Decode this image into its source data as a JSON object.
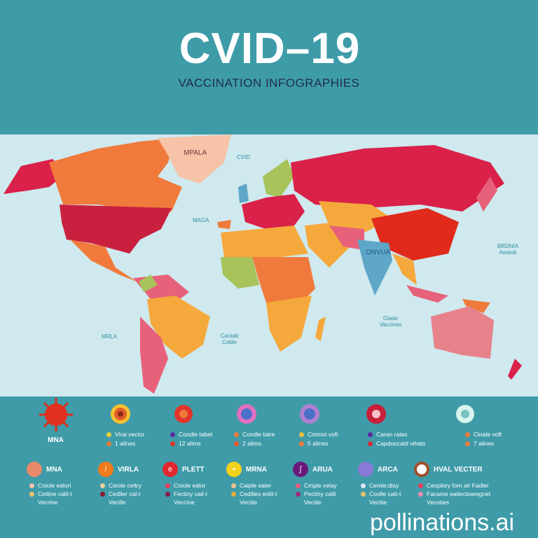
{
  "header": {
    "title": "CVID–19",
    "subtitle": "VACCINATION INFOGRAPHIES"
  },
  "map": {
    "labels": [
      "MPALA",
      "CVID",
      "MAGA",
      "MRLA",
      "Cantab Coble",
      "ONVUA",
      "BRDNIA Aeetok",
      "Glade Vaccines"
    ],
    "colors": {
      "ocean": "#cfe9ef",
      "red": "#d9214a",
      "orange": "#f07a3c",
      "yellow": "#f5a93c",
      "pink": "#e8617a",
      "green": "#a7c35a",
      "blue": "#5ea7c8",
      "peach": "#f7c3a8"
    }
  },
  "legend_row": {
    "first_label": "MNA",
    "items": [
      {
        "color": "#f0a020",
        "lines": [
          "Viral vector",
          "1 alines"
        ],
        "dots": [
          "#e8d23a",
          "#e87a2e"
        ]
      },
      {
        "color": "#e0352a",
        "lines": [
          "Condle tabet",
          "12 alims"
        ],
        "dots": [
          "#5a2aa0",
          "#e0352a"
        ]
      },
      {
        "color": "#d86fc0",
        "lines": [
          "Condle tatre",
          "2 alims"
        ],
        "dots": [
          "#f07a3c",
          "#f05a2a"
        ]
      },
      {
        "color": "#9a70c8",
        "lines": [
          "Cmmot voft",
          "5 alines"
        ],
        "dots": [
          "#e8c23a",
          "#f07a3c"
        ]
      },
      {
        "color": "#c8203a",
        "lines": [
          "Caran ratas",
          "Capduocatd vihats"
        ],
        "dots": [
          "#5a2aa0",
          "#d92a3a"
        ]
      },
      {
        "color": "#c8eee8",
        "lines": [
          "Cinale voft",
          "7 alines"
        ],
        "dots": [
          "#f07a3c",
          "#f07a3c"
        ]
      }
    ]
  },
  "categories": [
    {
      "name": "MNA",
      "color": "#e88a6a",
      "glyph": "",
      "lines": [
        "Coiole ealori",
        "Cetline calil-t",
        "Vecrine"
      ]
    },
    {
      "name": "VIRLA",
      "color": "#f07a1c",
      "glyph": "/",
      "lines": [
        "Ceiole celtry",
        "Cedller cal-t",
        "Vecille"
      ]
    },
    {
      "name": "PLETT",
      "color": "#e0282e",
      "glyph": "e",
      "lines": [
        "Coiole ealor",
        "Fectiny cail-t",
        "Veccine"
      ]
    },
    {
      "name": "MRNA",
      "color": "#f2d21a",
      "glyph": "▪",
      "lines": [
        "Caiple ealer",
        "Cedilles eolit-t",
        "Vecitie"
      ]
    },
    {
      "name": "ARUA",
      "color": "#6a1a7a",
      "glyph": "ʃ",
      "lines": [
        "Cmple velay",
        "Pectiny calit",
        "Vecilie"
      ]
    },
    {
      "name": "ARCA",
      "color": "#8a7ad8",
      "glyph": "",
      "lines": [
        "Cemle:dlay",
        "Coolle catt-t",
        "Vecitie"
      ]
    },
    {
      "name": "HVAL VECTER",
      "color": "#fff",
      "glyph": "",
      "lines": [
        "Ceoplory fom air Fadler",
        "Facame ealiectearegnet",
        "Vecoties"
      ]
    }
  ],
  "watermark": "pollinations.ai"
}
